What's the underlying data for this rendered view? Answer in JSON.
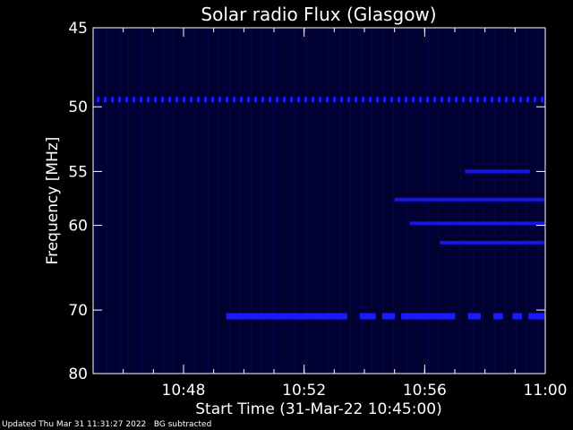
{
  "chart_data": {
    "type": "heatmap",
    "title": "Solar radio Flux (Glasgow)",
    "xlabel": "Start Time (31-Mar-22 10:45:00)",
    "ylabel": "Frequency [MHz]",
    "xlim": [
      "10:45",
      "11:00"
    ],
    "ylim": [
      45,
      80
    ],
    "y_scale": "reciprocal (inverted, higher frequency at bottom)",
    "xticks": [
      "10:48",
      "10:52",
      "10:56",
      "11:00"
    ],
    "yticks": [
      45,
      50,
      55,
      60,
      70,
      80
    ],
    "background_color": "#000033",
    "emission_color": "#1a1aff",
    "emission_features": [
      {
        "frequency_mhz": 49.5,
        "start": "10:45",
        "end": "11:00",
        "pattern": "dashed"
      },
      {
        "frequency_mhz": 70.8,
        "start": "10:49:25",
        "end": "11:00",
        "pattern": "intermittent"
      },
      {
        "frequency_mhz": 55.0,
        "start": "10:57:20",
        "end": "10:59:30",
        "pattern": "band"
      },
      {
        "frequency_mhz": 57.5,
        "start": "10:55:00",
        "end": "11:00",
        "pattern": "band"
      },
      {
        "frequency_mhz": 59.8,
        "start": "10:55:30",
        "end": "11:00",
        "pattern": "band"
      },
      {
        "frequency_mhz": 61.8,
        "start": "10:56:30",
        "end": "11:00",
        "pattern": "band"
      }
    ]
  },
  "footer": {
    "updated": "Updated Thu Mar 31 11:31:27 2022",
    "note": "BG subtracted"
  }
}
